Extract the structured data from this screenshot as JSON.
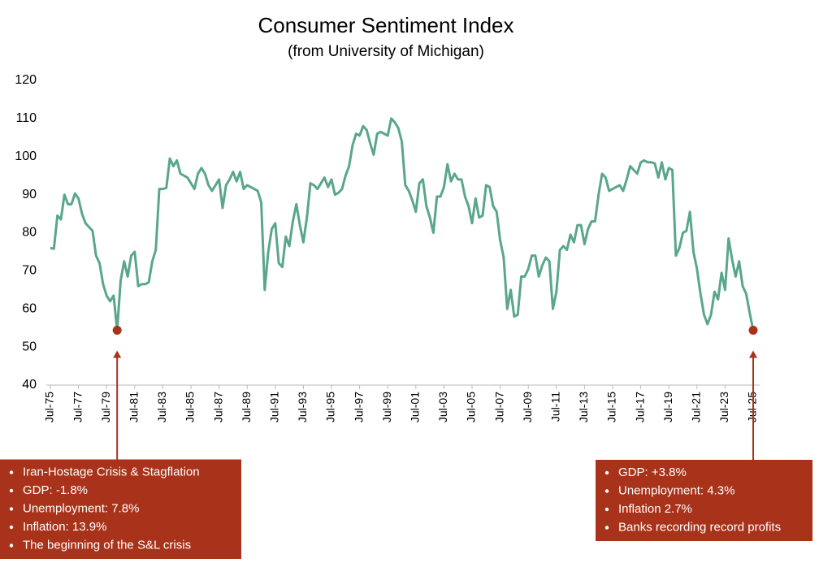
{
  "chart_data": {
    "type": "line",
    "title": "Consumer Sentiment Index",
    "subtitle": "(from University of Michigan)",
    "color": "#5aa68c",
    "highlight_color": "#a8331a",
    "ylim": [
      40,
      120
    ],
    "yticks": [
      40,
      50,
      60,
      70,
      80,
      90,
      100,
      110,
      120
    ],
    "grid": false,
    "categories": [
      "Jul-75",
      null,
      null,
      null,
      null,
      null,
      null,
      null,
      "Jul-77",
      null,
      null,
      null,
      null,
      null,
      null,
      null,
      "Jul-79",
      null,
      null,
      null,
      null,
      null,
      null,
      null,
      "Jul-81",
      null,
      null,
      null,
      null,
      null,
      null,
      null,
      "Jul-83",
      null,
      null,
      null,
      null,
      null,
      null,
      null,
      "Jul-85",
      null,
      null,
      null,
      null,
      null,
      null,
      null,
      "Jul-87",
      null,
      null,
      null,
      null,
      null,
      null,
      null,
      "Jul-89",
      null,
      null,
      null,
      null,
      null,
      null,
      null,
      "Jul-91",
      null,
      null,
      null,
      null,
      null,
      null,
      null,
      "Jul-93",
      null,
      null,
      null,
      null,
      null,
      null,
      null,
      "Jul-95",
      null,
      null,
      null,
      null,
      null,
      null,
      null,
      "Jul-97",
      null,
      null,
      null,
      null,
      null,
      null,
      null,
      "Jul-99",
      null,
      null,
      null,
      null,
      null,
      null,
      null,
      "Jul-01",
      null,
      null,
      null,
      null,
      null,
      null,
      null,
      "Jul-03",
      null,
      null,
      null,
      null,
      null,
      null,
      null,
      "Jul-05",
      null,
      null,
      null,
      null,
      null,
      null,
      null,
      "Jul-07",
      null,
      null,
      null,
      null,
      null,
      null,
      null,
      "Jul-09",
      null,
      null,
      null,
      null,
      null,
      null,
      null,
      "Jul-11",
      null,
      null,
      null,
      null,
      null,
      null,
      null,
      "Jul-13",
      null,
      null,
      null,
      null,
      null,
      null,
      null,
      "Jul-15",
      null,
      null,
      null,
      null,
      null,
      null,
      null,
      "Jul-17",
      null,
      null,
      null,
      null,
      null,
      null,
      null,
      "Jul-19",
      null,
      null,
      null,
      null,
      null,
      null,
      null,
      "Jul-21",
      null,
      null,
      null,
      null,
      null,
      null,
      null,
      "Jul-23",
      null,
      null,
      null,
      null,
      null,
      null,
      null,
      "Jul-25"
    ],
    "values": [
      76,
      75.8,
      84.5,
      83.5,
      90,
      87.5,
      87.5,
      90.3,
      89,
      85,
      82.5,
      81.5,
      80.5,
      74,
      72,
      66.5,
      63.5,
      62,
      63.5,
      54.4,
      67.5,
      72.5,
      68.5,
      74,
      75,
      66,
      66.5,
      66.5,
      67,
      72.5,
      75.5,
      91.5,
      91.5,
      91.8,
      99.5,
      97.5,
      99,
      95.5,
      95,
      94.5,
      93,
      91.5,
      95.5,
      97,
      95.5,
      92.5,
      91,
      92.5,
      94,
      86.5,
      92.5,
      94,
      96,
      93.5,
      96,
      91.5,
      92.5,
      92,
      91.5,
      91,
      88,
      65,
      75,
      81,
      82.5,
      72,
      71,
      79,
      76.5,
      83,
      87.5,
      82,
      77.5,
      84,
      93,
      92.5,
      91.5,
      93,
      94.5,
      92,
      94,
      90,
      90.5,
      91.5,
      95,
      97.5,
      103,
      106,
      105.5,
      108,
      107,
      103.5,
      100.5,
      106,
      106.5,
      106,
      105.5,
      110,
      109,
      107.5,
      104,
      92.5,
      91,
      88.5,
      85.5,
      93,
      94,
      87,
      84,
      80,
      89.5,
      89.5,
      92,
      98,
      93.5,
      95.5,
      94,
      94,
      89.5,
      87,
      82.5,
      89,
      84,
      84.5,
      92.5,
      92,
      87,
      85.5,
      78,
      73.5,
      60,
      65,
      58,
      58.5,
      68.5,
      68.5,
      70.5,
      74,
      74,
      68.5,
      71.5,
      73.5,
      72.5,
      60,
      64.5,
      75.5,
      76.5,
      75.5,
      79.5,
      77.5,
      82,
      82,
      77,
      81,
      83,
      83,
      90,
      95.5,
      94.5,
      91,
      91.5,
      92,
      92.5,
      91,
      94,
      97.5,
      96.5,
      95.5,
      98.5,
      99,
      98.5,
      98.5,
      98.2,
      94.5,
      98.5,
      94,
      97,
      96.5,
      74,
      76,
      80,
      80.5,
      85.5,
      75,
      70.5,
      64,
      58.5,
      56,
      58.5,
      64.5,
      62.5,
      69.5,
      65,
      78.5,
      73,
      68.5,
      72.5,
      66,
      64,
      59,
      54.4
    ],
    "annotations": [
      {
        "index": 19,
        "lines": [
          "Iran-Hostage Crisis & Stagflation",
          "GDP:  -1.8%",
          "Unemployment: 7.8%",
          "Inflation: 13.9%",
          "The beginning of the S&L crisis"
        ]
      },
      {
        "index": 200,
        "lines": [
          "GDP:  +3.8%",
          "Unemployment: 4.3%",
          "Inflation 2.7%",
          "Banks recording record profits"
        ]
      }
    ]
  }
}
